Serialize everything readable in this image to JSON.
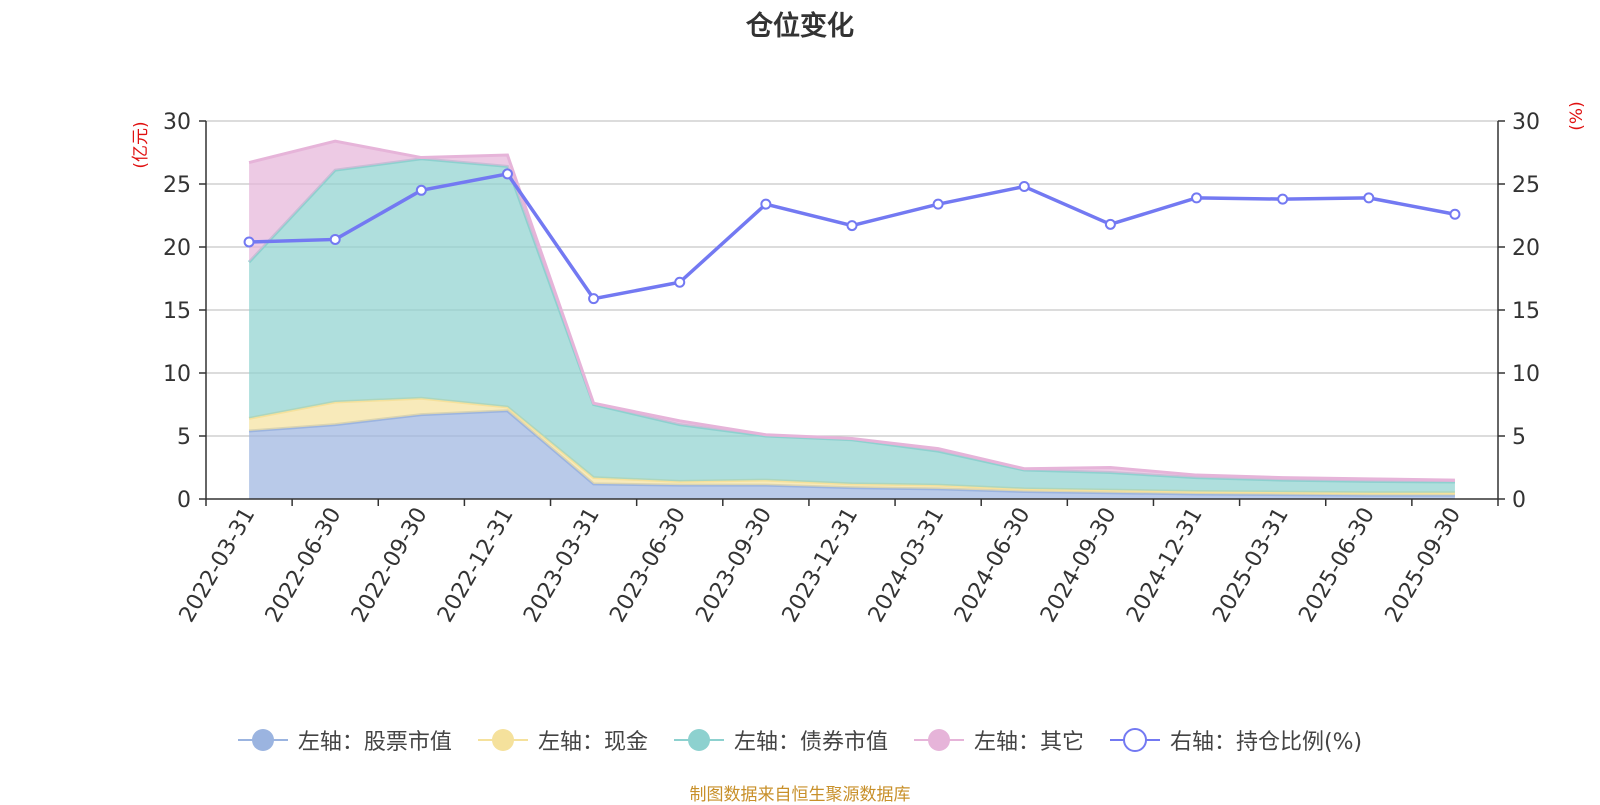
{
  "title": "仓位变化",
  "source_note": "制图数据来自恒生聚源数据库",
  "chart_data": {
    "type": "area",
    "title": "仓位变化",
    "categories": [
      "2022-03-31",
      "2022-06-30",
      "2022-09-30",
      "2022-12-31",
      "2023-03-31",
      "2023-06-30",
      "2023-09-30",
      "2023-12-31",
      "2024-03-31",
      "2024-06-30",
      "2024-09-30",
      "2024-12-31",
      "2025-03-31",
      "2025-06-30",
      "2025-09-30"
    ],
    "left_axis": {
      "unit": "(亿元)",
      "ylim": [
        0,
        30
      ],
      "ticks": [
        0,
        5,
        10,
        15,
        20,
        25,
        30
      ]
    },
    "right_axis": {
      "unit": "(%)",
      "ylim": [
        0,
        30
      ],
      "ticks": [
        0,
        5,
        10,
        15,
        20,
        25,
        30
      ]
    },
    "series": [
      {
        "name": "左轴：股票市值",
        "axis": "left",
        "stack": true,
        "color": "#9bb4e0",
        "values": [
          5.4,
          5.9,
          6.7,
          7.0,
          1.2,
          1.1,
          1.1,
          0.9,
          0.8,
          0.6,
          0.5,
          0.4,
          0.35,
          0.3,
          0.3
        ]
      },
      {
        "name": "左轴：现金",
        "axis": "left",
        "stack": true,
        "color": "#f5e19c",
        "values": [
          1.0,
          1.8,
          1.3,
          0.3,
          0.5,
          0.3,
          0.4,
          0.3,
          0.3,
          0.2,
          0.2,
          0.2,
          0.2,
          0.2,
          0.2
        ]
      },
      {
        "name": "左轴：债券市值",
        "axis": "left",
        "stack": true,
        "color": "#8dd1cf",
        "values": [
          12.4,
          18.4,
          19.0,
          19.1,
          5.8,
          4.5,
          3.5,
          3.5,
          2.7,
          1.5,
          1.4,
          1.1,
          0.95,
          0.9,
          0.85
        ]
      },
      {
        "name": "左轴：其它",
        "axis": "left",
        "stack": true,
        "color": "#e6b4d9",
        "values": [
          7.9,
          2.3,
          0.1,
          0.9,
          0.1,
          0.3,
          0.1,
          0.1,
          0.2,
          0.1,
          0.4,
          0.2,
          0.2,
          0.2,
          0.15
        ]
      },
      {
        "name": "右轴：持仓比例(%)",
        "axis": "right",
        "type": "line",
        "color": "#7379f2",
        "values": [
          20.4,
          20.6,
          24.5,
          25.8,
          15.9,
          17.2,
          23.4,
          21.7,
          23.4,
          24.8,
          21.8,
          23.9,
          23.8,
          23.9,
          22.6
        ]
      }
    ]
  }
}
